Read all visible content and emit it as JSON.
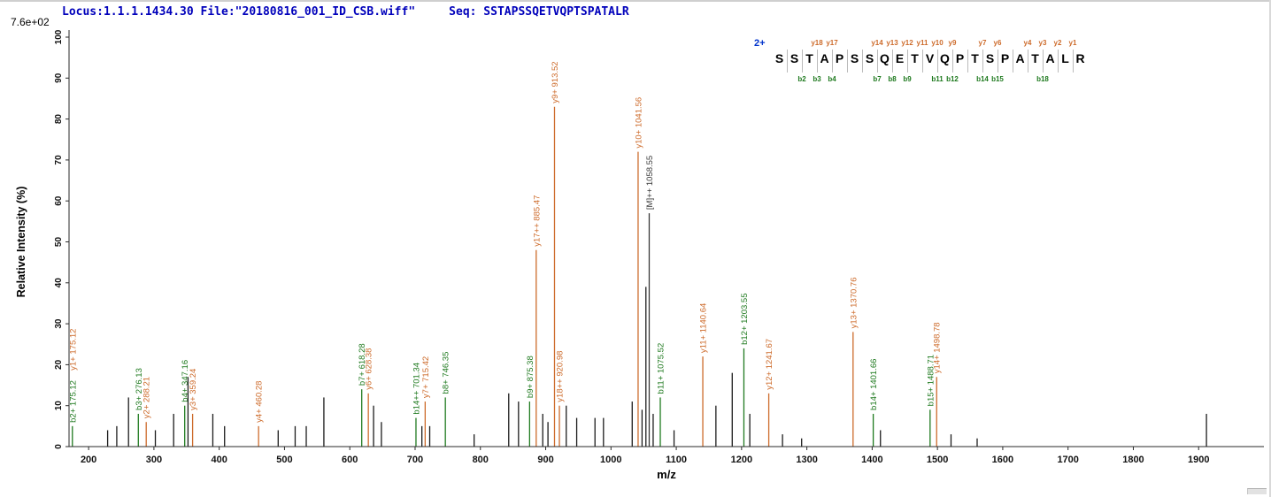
{
  "header": {
    "locus_file_text": "Locus:1.1.1.1434.30 File:\"20180816_001_ID_CSB.wiff\"",
    "seq_text": "Seq: SSTAPSSQETVQPTSPATALR"
  },
  "colors": {
    "y_ion": "#cd6b2b",
    "b_ion": "#1f7a1f",
    "peak": "#1c1c1c",
    "precursor": "#3a3a3a",
    "axis": "#2a2a2a",
    "axis_text": "#111111",
    "header_blue": "#0000bb",
    "charge_blue": "#0033cc",
    "divider_gray": "#bbbbbb"
  },
  "chart_data": {
    "type": "bar",
    "subtype": "ms2-fragment-spectrum",
    "title": "",
    "xlabel": "m/z",
    "ylabel": "Relative  Intensity  (%)",
    "intensity_scale_label": "7.6e+02",
    "xlim": [
      170,
      2000
    ],
    "ylim": [
      0,
      100
    ],
    "grid": false,
    "x_ticks": [
      200,
      300,
      400,
      500,
      600,
      700,
      800,
      900,
      1000,
      1100,
      1200,
      1300,
      1400,
      1500,
      1600,
      1700,
      1800,
      1900
    ],
    "y_ticks": [
      0,
      10,
      20,
      30,
      40,
      50,
      60,
      70,
      80,
      90,
      100
    ],
    "peaks": [
      {
        "mz": 175.12,
        "intensity": 5,
        "ion": "b",
        "labels": [
          {
            "text": "b2+ 175.12",
            "ion": "b"
          },
          {
            "text": "y1+ 175.12",
            "ion": "y"
          }
        ]
      },
      {
        "mz": 229.1,
        "intensity": 4,
        "ion": ""
      },
      {
        "mz": 243.1,
        "intensity": 5,
        "ion": ""
      },
      {
        "mz": 261.1,
        "intensity": 12,
        "ion": ""
      },
      {
        "mz": 276.13,
        "intensity": 8,
        "ion": "b",
        "labels": [
          {
            "text": "b3+ 276.13",
            "ion": "b"
          }
        ]
      },
      {
        "mz": 288.21,
        "intensity": 6,
        "ion": "y",
        "labels": [
          {
            "text": "y2+ 288.21",
            "ion": "y"
          }
        ]
      },
      {
        "mz": 302.2,
        "intensity": 4,
        "ion": ""
      },
      {
        "mz": 330.2,
        "intensity": 8,
        "ion": ""
      },
      {
        "mz": 347.16,
        "intensity": 10,
        "ion": "b",
        "labels": [
          {
            "text": "b4+ 347.16",
            "ion": "b"
          }
        ]
      },
      {
        "mz": 352.2,
        "intensity": 17,
        "ion": ""
      },
      {
        "mz": 359.24,
        "intensity": 8,
        "ion": "y",
        "labels": [
          {
            "text": "y3+ 359.24",
            "ion": "y"
          }
        ]
      },
      {
        "mz": 390.2,
        "intensity": 8,
        "ion": ""
      },
      {
        "mz": 408.2,
        "intensity": 5,
        "ion": ""
      },
      {
        "mz": 460.28,
        "intensity": 5,
        "ion": "y",
        "labels": [
          {
            "text": "y4+ 460.28",
            "ion": "y"
          }
        ]
      },
      {
        "mz": 490.3,
        "intensity": 4,
        "ion": ""
      },
      {
        "mz": 516.3,
        "intensity": 5,
        "ion": ""
      },
      {
        "mz": 533.3,
        "intensity": 5,
        "ion": ""
      },
      {
        "mz": 560.3,
        "intensity": 12,
        "ion": ""
      },
      {
        "mz": 618.28,
        "intensity": 14,
        "ion": "b",
        "labels": [
          {
            "text": "b7+ 618.28",
            "ion": "b"
          }
        ]
      },
      {
        "mz": 628.38,
        "intensity": 13,
        "ion": "y",
        "labels": [
          {
            "text": "y6+ 628.38",
            "ion": "y"
          }
        ]
      },
      {
        "mz": 636.4,
        "intensity": 10,
        "ion": ""
      },
      {
        "mz": 648.4,
        "intensity": 6,
        "ion": ""
      },
      {
        "mz": 701.34,
        "intensity": 7,
        "ion": "b",
        "labels": [
          {
            "text": "b14++ 701.34",
            "ion": "b"
          }
        ]
      },
      {
        "mz": 710.4,
        "intensity": 5,
        "ion": ""
      },
      {
        "mz": 715.42,
        "intensity": 11,
        "ion": "y",
        "labels": [
          {
            "text": "y7+ 715.42",
            "ion": "y"
          }
        ]
      },
      {
        "mz": 722.4,
        "intensity": 5,
        "ion": ""
      },
      {
        "mz": 746.35,
        "intensity": 12,
        "ion": "b",
        "labels": [
          {
            "text": "b8+ 746.35",
            "ion": "b"
          }
        ]
      },
      {
        "mz": 790.4,
        "intensity": 3,
        "ion": ""
      },
      {
        "mz": 843.4,
        "intensity": 13,
        "ion": ""
      },
      {
        "mz": 858.4,
        "intensity": 11,
        "ion": ""
      },
      {
        "mz": 875.38,
        "intensity": 11,
        "ion": "b",
        "labels": [
          {
            "text": "b9+ 875.38",
            "ion": "b"
          }
        ]
      },
      {
        "mz": 885.47,
        "intensity": 48,
        "ion": "y",
        "labels": [
          {
            "text": "y17++ 885.47",
            "ion": "y"
          }
        ]
      },
      {
        "mz": 895.5,
        "intensity": 8,
        "ion": ""
      },
      {
        "mz": 903.5,
        "intensity": 6,
        "ion": ""
      },
      {
        "mz": 913.52,
        "intensity": 83,
        "ion": "y",
        "labels": [
          {
            "text": "y9+ 913.52",
            "ion": "y"
          }
        ]
      },
      {
        "mz": 920.98,
        "intensity": 10,
        "ion": "y",
        "labels": [
          {
            "text": "y18++ 920.98",
            "ion": "y"
          }
        ]
      },
      {
        "mz": 931.5,
        "intensity": 10,
        "ion": ""
      },
      {
        "mz": 947.5,
        "intensity": 7,
        "ion": ""
      },
      {
        "mz": 975.5,
        "intensity": 7,
        "ion": ""
      },
      {
        "mz": 988.5,
        "intensity": 7,
        "ion": ""
      },
      {
        "mz": 1032.5,
        "intensity": 11,
        "ion": ""
      },
      {
        "mz": 1041.56,
        "intensity": 72,
        "ion": "y",
        "labels": [
          {
            "text": "y10+ 1041.56",
            "ion": "y"
          }
        ]
      },
      {
        "mz": 1047.6,
        "intensity": 9,
        "ion": ""
      },
      {
        "mz": 1053.5,
        "intensity": 39,
        "ion": ""
      },
      {
        "mz": 1058.55,
        "intensity": 57,
        "ion": "precursor",
        "labels": [
          {
            "text": "[M]++ 1058.55",
            "ion": "precursor"
          }
        ]
      },
      {
        "mz": 1064.6,
        "intensity": 8,
        "ion": ""
      },
      {
        "mz": 1075.52,
        "intensity": 12,
        "ion": "b",
        "labels": [
          {
            "text": "b11+ 1075.52",
            "ion": "b"
          }
        ]
      },
      {
        "mz": 1096.6,
        "intensity": 4,
        "ion": ""
      },
      {
        "mz": 1140.64,
        "intensity": 22,
        "ion": "y",
        "labels": [
          {
            "text": "y11+ 1140.64",
            "ion": "y"
          }
        ]
      },
      {
        "mz": 1160.7,
        "intensity": 10,
        "ion": ""
      },
      {
        "mz": 1185.7,
        "intensity": 18,
        "ion": ""
      },
      {
        "mz": 1203.55,
        "intensity": 24,
        "ion": "b",
        "labels": [
          {
            "text": "b12+ 1203.55",
            "ion": "b"
          }
        ]
      },
      {
        "mz": 1212.6,
        "intensity": 8,
        "ion": ""
      },
      {
        "mz": 1241.67,
        "intensity": 13,
        "ion": "y",
        "labels": [
          {
            "text": "y12+ 1241.67",
            "ion": "y"
          }
        ]
      },
      {
        "mz": 1262.7,
        "intensity": 3,
        "ion": ""
      },
      {
        "mz": 1292.0,
        "intensity": 2,
        "ion": ""
      },
      {
        "mz": 1370.76,
        "intensity": 28,
        "ion": "y",
        "labels": [
          {
            "text": "y13+ 1370.76",
            "ion": "y"
          }
        ]
      },
      {
        "mz": 1401.66,
        "intensity": 8,
        "ion": "b",
        "labels": [
          {
            "text": "b14+ 1401.66",
            "ion": "b"
          }
        ]
      },
      {
        "mz": 1412.7,
        "intensity": 4,
        "ion": ""
      },
      {
        "mz": 1488.71,
        "intensity": 9,
        "ion": "b",
        "labels": [
          {
            "text": "b15+ 1488.71",
            "ion": "b"
          }
        ]
      },
      {
        "mz": 1498.78,
        "intensity": 17,
        "ion": "y",
        "labels": [
          {
            "text": "y14+ 1498.78",
            "ion": "y"
          }
        ]
      },
      {
        "mz": 1520.8,
        "intensity": 3,
        "ion": ""
      },
      {
        "mz": 1560.8,
        "intensity": 2,
        "ion": ""
      },
      {
        "mz": 1912.0,
        "intensity": 8,
        "ion": ""
      }
    ],
    "sequence_panel": {
      "charge_label": "2+",
      "residues": [
        "S",
        "S",
        "T",
        "A",
        "P",
        "S",
        "S",
        "Q",
        "E",
        "T",
        "V",
        "Q",
        "P",
        "T",
        "S",
        "P",
        "A",
        "T",
        "A",
        "L",
        "R"
      ],
      "y_ion_marks": [
        {
          "label": "y18",
          "after": 3
        },
        {
          "label": "y17",
          "after": 4
        },
        {
          "label": "y14",
          "after": 7
        },
        {
          "label": "y13",
          "after": 8
        },
        {
          "label": "y12",
          "after": 9
        },
        {
          "label": "y11",
          "after": 10
        },
        {
          "label": "y10",
          "after": 11
        },
        {
          "label": "y9",
          "after": 12
        },
        {
          "label": "y7",
          "after": 14
        },
        {
          "label": "y6",
          "after": 15
        },
        {
          "label": "y4",
          "after": 17
        },
        {
          "label": "y3",
          "after": 18
        },
        {
          "label": "y2",
          "after": 19
        },
        {
          "label": "y1",
          "after": 20
        }
      ],
      "b_ion_marks": [
        {
          "label": "b2",
          "after": 2
        },
        {
          "label": "b3",
          "after": 3
        },
        {
          "label": "b4",
          "after": 4
        },
        {
          "label": "b7",
          "after": 7
        },
        {
          "label": "b8",
          "after": 8
        },
        {
          "label": "b9",
          "after": 9
        },
        {
          "label": "b11",
          "after": 11
        },
        {
          "label": "b12",
          "after": 12
        },
        {
          "label": "b14",
          "after": 14
        },
        {
          "label": "b15",
          "after": 15
        },
        {
          "label": "b18",
          "after": 18
        }
      ]
    }
  }
}
